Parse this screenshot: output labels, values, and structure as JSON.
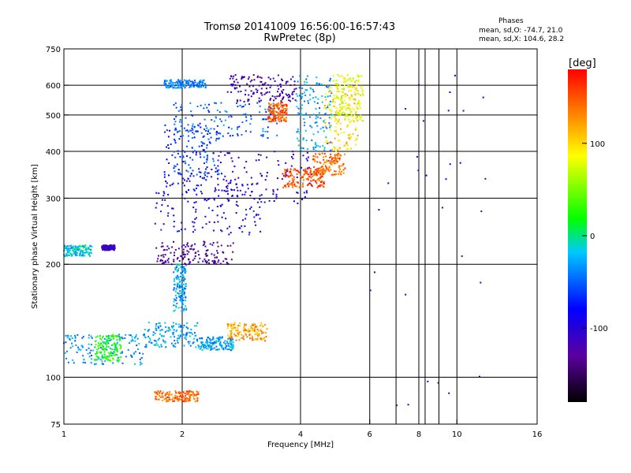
{
  "header": {
    "title": "Tromsø 20141009 16:56:00-16:57:43",
    "subtitle": "RwPretec (8p)"
  },
  "stats": {
    "heading": "Phases",
    "o_mode": "mean, sd,O: -74.7, 21.0",
    "x_mode": "mean, sd,X: 104.6, 28.2"
  },
  "chart_data": {
    "type": "scatter",
    "title": "Tromsø 20141009 16:56:00-16:57:43",
    "subtitle": "RwPretec (8p)",
    "xlabel": "Frequency [MHz]",
    "ylabel": "Stationary phase Virtual Height [km]",
    "x_scale": "log",
    "y_scale": "log",
    "xlim": [
      1,
      16
    ],
    "ylim": [
      75,
      750
    ],
    "x_ticks": [
      1,
      2,
      4,
      6,
      8,
      10,
      16
    ],
    "y_ticks": [
      75,
      100,
      200,
      300,
      400,
      500,
      600,
      750
    ],
    "grid": true,
    "colorbar": {
      "label": "[deg]",
      "range": [
        -180,
        180
      ],
      "ticks": [
        100,
        0,
        -100
      ],
      "colormap": "rainbow",
      "colors": [
        "#000000",
        "#5b00a0",
        "#0000ff",
        "#00c8ff",
        "#00ff00",
        "#ffff00",
        "#ff8000",
        "#ff0000"
      ]
    },
    "series": [
      {
        "freq_range": [
          1.0,
          1.18
        ],
        "height_range": [
          210,
          225
        ],
        "phase": -15
      },
      {
        "freq_range": [
          1.25,
          1.35
        ],
        "height_range": [
          218,
          225
        ],
        "phase": -110
      },
      {
        "freq_range": [
          1.0,
          1.6
        ],
        "height_range": [
          108,
          130
        ],
        "phase": -35
      },
      {
        "freq_range": [
          1.2,
          1.4
        ],
        "height_range": [
          110,
          130
        ],
        "phase": 25
      },
      {
        "freq_range": [
          1.6,
          2.2
        ],
        "height_range": [
          120,
          140
        ],
        "phase": -30
      },
      {
        "freq_range": [
          2.2,
          2.7
        ],
        "height_range": [
          118,
          128
        ],
        "phase": -30
      },
      {
        "freq_range": [
          2.6,
          3.3
        ],
        "height_range": [
          125,
          140
        ],
        "phase": 120
      },
      {
        "freq_range": [
          1.7,
          2.2
        ],
        "height_range": [
          86,
          92
        ],
        "phase": 140
      },
      {
        "freq_range": [
          1.9,
          2.05
        ],
        "height_range": [
          150,
          200
        ],
        "phase": -30
      },
      {
        "freq_range": [
          1.7,
          2.7
        ],
        "height_range": [
          200,
          230
        ],
        "phase": -130
      },
      {
        "freq_range": [
          1.7,
          3.2
        ],
        "height_range": [
          240,
          330
        ],
        "phase": -85
      },
      {
        "freq_range": [
          2.0,
          4.3
        ],
        "height_range": [
          290,
          400
        ],
        "phase": -100
      },
      {
        "freq_range": [
          1.8,
          2.5
        ],
        "height_range": [
          330,
          470
        ],
        "phase": -60
      },
      {
        "freq_range": [
          1.9,
          3.5
        ],
        "height_range": [
          430,
          540
        ],
        "phase": -50
      },
      {
        "freq_range": [
          1.8,
          2.3
        ],
        "height_range": [
          590,
          620
        ],
        "phase": -40
      },
      {
        "freq_range": [
          2.6,
          3.9
        ],
        "height_range": [
          540,
          640
        ],
        "phase": -120
      },
      {
        "freq_range": [
          3.3,
          3.7
        ],
        "height_range": [
          480,
          540
        ],
        "phase": 150
      },
      {
        "freq_range": [
          3.9,
          4.8
        ],
        "height_range": [
          400,
          640
        ],
        "phase": -30
      },
      {
        "freq_range": [
          3.6,
          4.6
        ],
        "height_range": [
          320,
          360
        ],
        "phase": 150
      },
      {
        "freq_range": [
          4.3,
          5.2
        ],
        "height_range": [
          345,
          395
        ],
        "phase": 140
      },
      {
        "freq_range": [
          4.6,
          5.6
        ],
        "height_range": [
          400,
          600
        ],
        "phase": 100
      },
      {
        "freq_range": [
          4.8,
          5.8
        ],
        "height_range": [
          480,
          640
        ],
        "phase": 80
      },
      {
        "freq_range": [
          6.0,
          12.0
        ],
        "height_range": [
          80,
          650
        ],
        "phase": -100
      }
    ]
  }
}
